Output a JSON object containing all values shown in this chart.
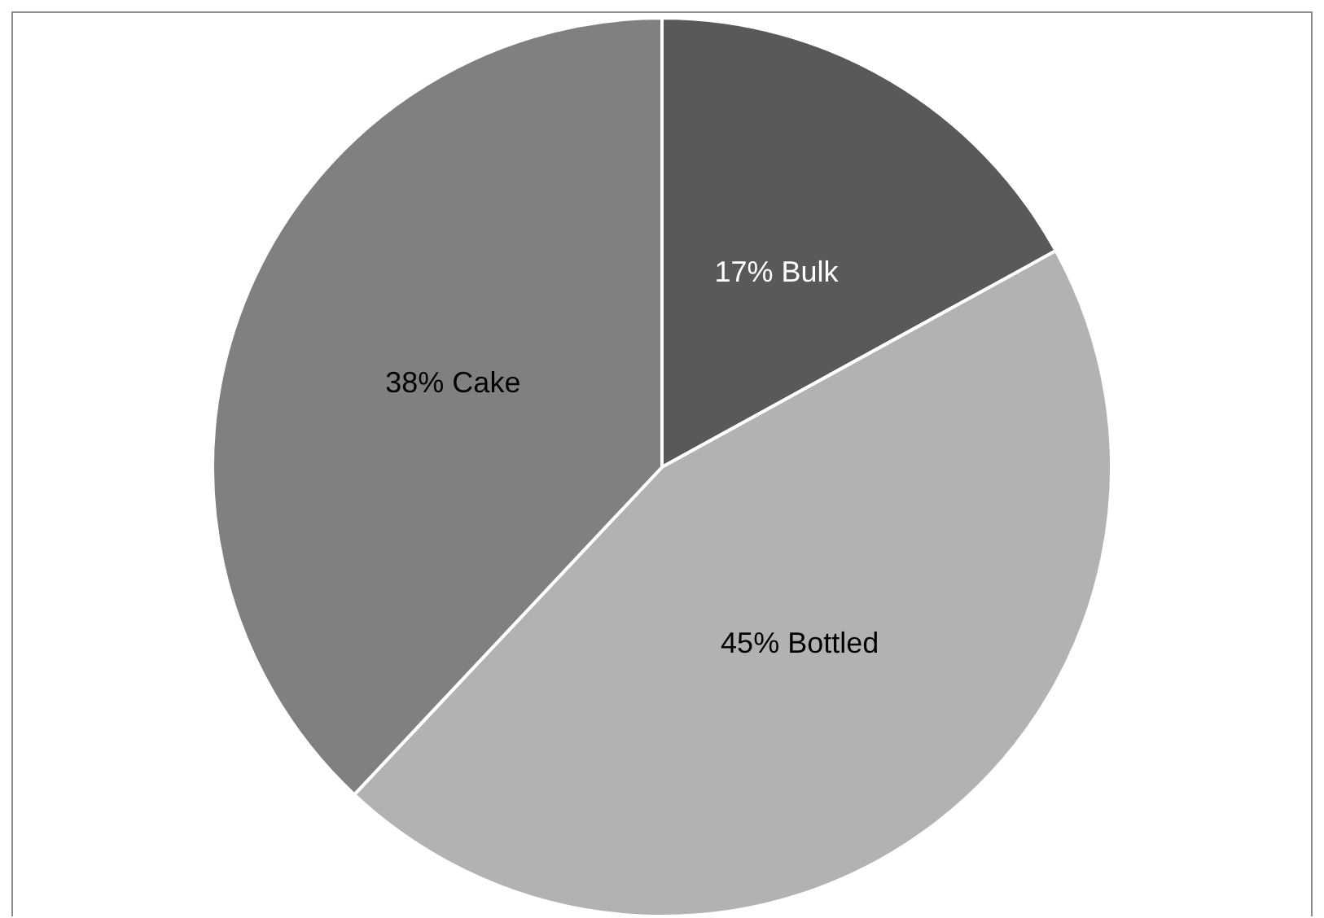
{
  "chart_data": {
    "type": "pie",
    "categories": [
      "Bulk",
      "Bottled",
      "Cake"
    ],
    "values": [
      17,
      45,
      38
    ],
    "colors": [
      "#595959",
      "#b2b2b2",
      "#808080"
    ],
    "value_labels": [
      "17%",
      "45%",
      "38%"
    ],
    "legend": false
  }
}
